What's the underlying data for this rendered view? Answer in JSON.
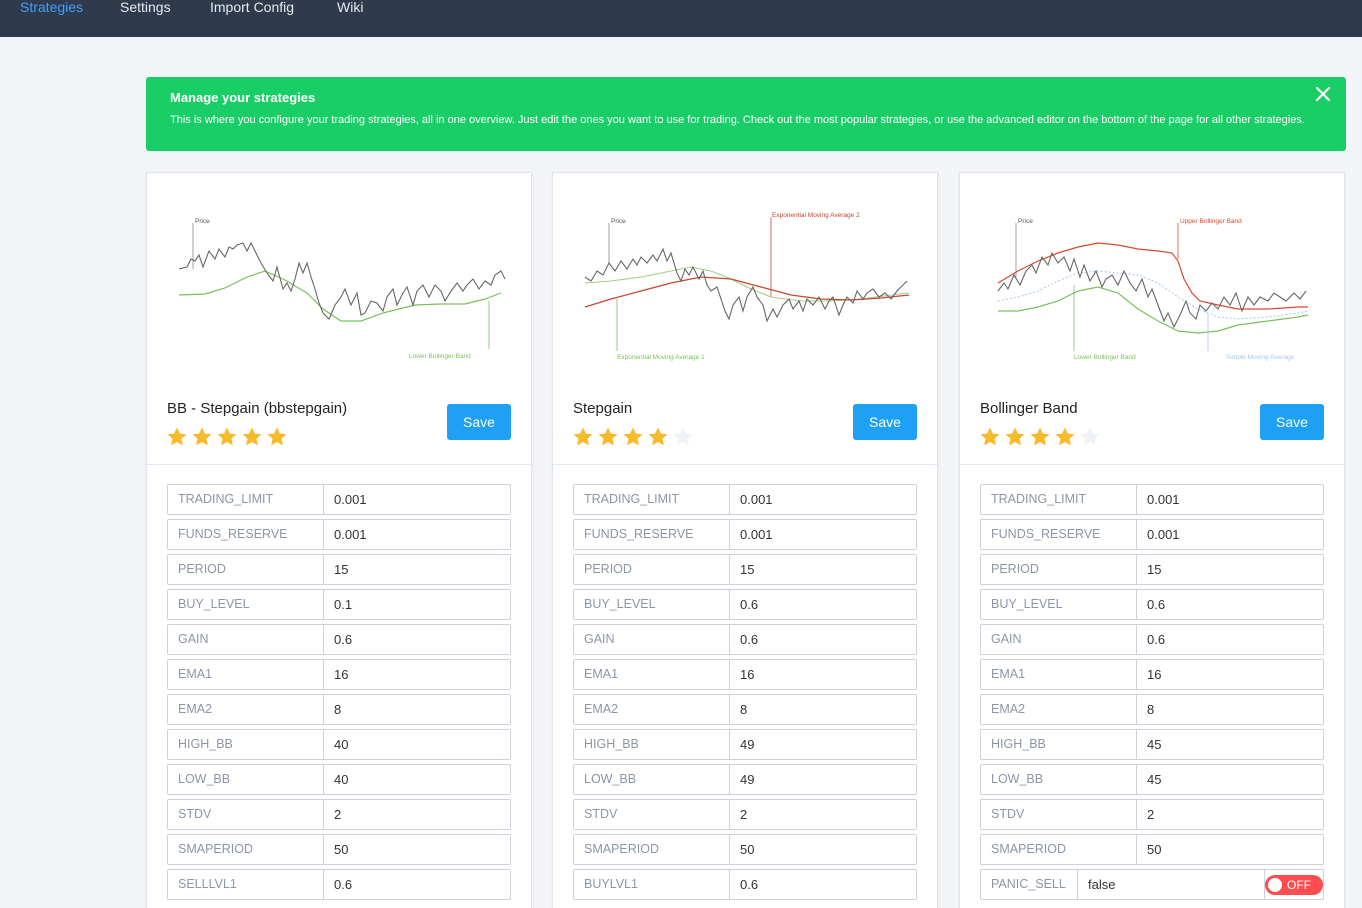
{
  "nav": {
    "items": [
      "Strategies",
      "Settings",
      "Import Config",
      "Wiki"
    ]
  },
  "alert": {
    "title": "Manage your strategies",
    "body": "This is where you configure your trading strategies, all in one overview. Just edit the ones you want to use for trading. Check out the most popular strategies, or use the advanced editor on the bottom of the page for all other strategies."
  },
  "colors": {
    "nav_bg": "#2f3a4d",
    "nav_active": "#3ea0ff",
    "alert_bg": "#19ce66",
    "save_bg": "#1ea1f5",
    "star_on": "#f7ba2a",
    "star_off": "#eff2f7",
    "toggle_off": "#ff4d4f"
  },
  "strategies": [
    {
      "title": "BB - Stepgain (bbstepgain)",
      "rating": 5,
      "save_label": "Save",
      "chart_labels": {
        "price": "Price",
        "a": "Lower Bollinger Band"
      },
      "fields": [
        {
          "label": "TRADING_LIMIT",
          "value": "0.001"
        },
        {
          "label": "FUNDS_RESERVE",
          "value": "0.001"
        },
        {
          "label": "PERIOD",
          "value": "15"
        },
        {
          "label": "BUY_LEVEL",
          "value": "0.1"
        },
        {
          "label": "GAIN",
          "value": "0.6"
        },
        {
          "label": "EMA1",
          "value": "16"
        },
        {
          "label": "EMA2",
          "value": "8"
        },
        {
          "label": "HIGH_BB",
          "value": "40"
        },
        {
          "label": "LOW_BB",
          "value": "40"
        },
        {
          "label": "STDV",
          "value": "2"
        },
        {
          "label": "SMAPERIOD",
          "value": "50"
        },
        {
          "label": "SELLLVL1",
          "value": "0.6"
        }
      ]
    },
    {
      "title": "Stepgain",
      "rating": 4,
      "save_label": "Save",
      "chart_labels": {
        "price": "Price",
        "a": "Exponential Moving Average 2",
        "b": "Exponential Moving Average 1"
      },
      "fields": [
        {
          "label": "TRADING_LIMIT",
          "value": "0.001"
        },
        {
          "label": "FUNDS_RESERVE",
          "value": "0.001"
        },
        {
          "label": "PERIOD",
          "value": "15"
        },
        {
          "label": "BUY_LEVEL",
          "value": "0.6"
        },
        {
          "label": "GAIN",
          "value": "0.6"
        },
        {
          "label": "EMA1",
          "value": "16"
        },
        {
          "label": "EMA2",
          "value": "8"
        },
        {
          "label": "HIGH_BB",
          "value": "49"
        },
        {
          "label": "LOW_BB",
          "value": "49"
        },
        {
          "label": "STDV",
          "value": "2"
        },
        {
          "label": "SMAPERIOD",
          "value": "50"
        },
        {
          "label": "BUYLVL1",
          "value": "0.6"
        }
      ]
    },
    {
      "title": "Bollinger Band",
      "rating": 4,
      "save_label": "Save",
      "chart_labels": {
        "price": "Price",
        "a": "Upper Bollinger Band",
        "b": "Lower Bollinger Band",
        "c": "Simple Moving Average"
      },
      "fields": [
        {
          "label": "TRADING_LIMIT",
          "value": "0.001"
        },
        {
          "label": "FUNDS_RESERVE",
          "value": "0.001"
        },
        {
          "label": "PERIOD",
          "value": "15"
        },
        {
          "label": "BUY_LEVEL",
          "value": "0.6"
        },
        {
          "label": "GAIN",
          "value": "0.6"
        },
        {
          "label": "EMA1",
          "value": "16"
        },
        {
          "label": "EMA2",
          "value": "8"
        },
        {
          "label": "HIGH_BB",
          "value": "45"
        },
        {
          "label": "LOW_BB",
          "value": "45"
        },
        {
          "label": "STDV",
          "value": "2"
        },
        {
          "label": "SMAPERIOD",
          "value": "50"
        },
        {
          "label": "PANIC_SELL",
          "value": "false",
          "toggle": "OFF"
        }
      ]
    }
  ]
}
